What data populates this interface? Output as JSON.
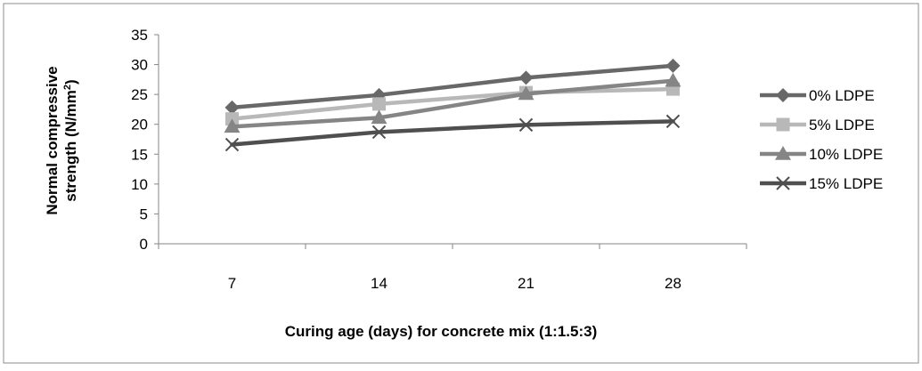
{
  "chart_data": {
    "type": "line",
    "categories": [
      "7",
      "14",
      "21",
      "28"
    ],
    "series": [
      {
        "name": "0% LDPE",
        "values": [
          22.8,
          24.9,
          27.8,
          29.8
        ],
        "color": "#686868",
        "marker": "diamond"
      },
      {
        "name": "5% LDPE",
        "values": [
          20.9,
          23.4,
          25.3,
          25.9
        ],
        "color": "#b8b8b8",
        "marker": "square"
      },
      {
        "name": "10% LDPE",
        "values": [
          19.6,
          21.1,
          25.1,
          27.3
        ],
        "color": "#858585",
        "marker": "triangle"
      },
      {
        "name": "15% LDPE",
        "values": [
          16.6,
          18.7,
          19.9,
          20.5
        ],
        "color": "#4f4f4f",
        "marker": "x"
      }
    ],
    "xlabel": "Curing age (days) for concrete mix (1:1.5:3)",
    "ylabel_line1": "Normal compressive",
    "ylabel_line2": "strength (N/mm",
    "ylabel_sup": "2",
    "ylabel_end": ")",
    "ylim": [
      0,
      35
    ],
    "yticks": [
      0,
      5,
      10,
      15,
      20,
      25,
      30,
      35
    ],
    "grid": false,
    "legend_position": "right"
  }
}
